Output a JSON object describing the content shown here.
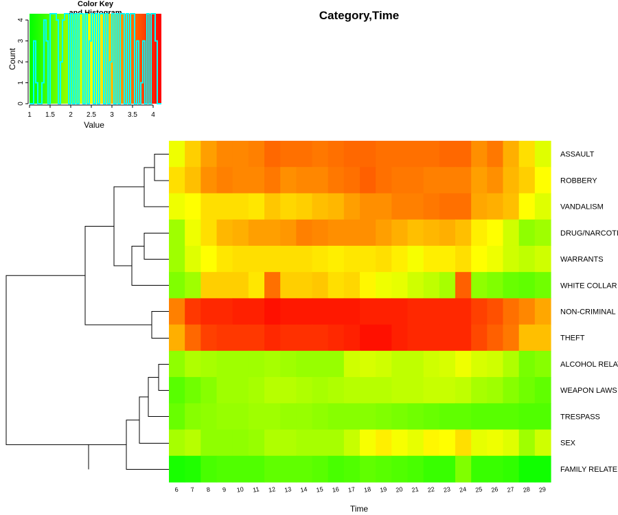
{
  "chart_data": {
    "type": "heatmap",
    "title": "Category,Time",
    "xlabel": "Time",
    "ylabel": "",
    "x_categories": [
      "6",
      "7",
      "8",
      "9",
      "10",
      "11",
      "12",
      "13",
      "14",
      "15",
      "16",
      "17",
      "18",
      "19",
      "20",
      "21",
      "22",
      "23",
      "24",
      "25",
      "26",
      "27",
      "28",
      "29"
    ],
    "row_labels": [
      "ASSAULT",
      "ROBBERY",
      "VANDALISM",
      "DRUG/NARCOTIC",
      "WARRANTS",
      "WHITE COLLAR",
      "NON-CRIMINAL",
      "THEFT",
      "ALCOHOL RELAT",
      "WEAPON LAWS",
      "TRESPASS",
      "SEX",
      "FAMILY RELATED"
    ],
    "value_range": [
      1,
      4.2
    ],
    "color_scale": [
      "#00ff00",
      "#ffff00",
      "#ff0000"
    ],
    "values": [
      [
        2.5,
        2.9,
        3.2,
        3.35,
        3.35,
        3.4,
        3.55,
        3.5,
        3.5,
        3.45,
        3.5,
        3.55,
        3.55,
        3.5,
        3.5,
        3.5,
        3.5,
        3.55,
        3.55,
        3.3,
        3.45,
        3.1,
        2.8,
        2.4
      ],
      [
        2.8,
        3.0,
        3.3,
        3.4,
        3.35,
        3.35,
        3.45,
        3.3,
        3.35,
        3.35,
        3.45,
        3.5,
        3.6,
        3.5,
        3.45,
        3.45,
        3.4,
        3.4,
        3.4,
        3.2,
        3.3,
        3.05,
        2.9,
        2.6
      ],
      [
        2.5,
        2.6,
        2.8,
        2.8,
        2.8,
        2.75,
        2.95,
        2.85,
        2.9,
        3.0,
        3.05,
        3.2,
        3.3,
        3.3,
        3.4,
        3.4,
        3.45,
        3.5,
        3.5,
        3.15,
        3.1,
        3.0,
        2.6,
        2.4
      ],
      [
        2.0,
        2.5,
        2.8,
        3.05,
        3.1,
        3.2,
        3.2,
        3.25,
        3.4,
        3.35,
        3.3,
        3.3,
        3.3,
        3.2,
        3.1,
        3.0,
        3.05,
        3.1,
        3.0,
        2.7,
        2.6,
        2.3,
        1.9,
        2.0
      ],
      [
        2.0,
        2.4,
        2.6,
        2.75,
        2.8,
        2.8,
        2.8,
        2.8,
        2.8,
        2.75,
        2.7,
        2.75,
        2.75,
        2.8,
        2.7,
        2.55,
        2.7,
        2.7,
        2.8,
        2.6,
        2.5,
        2.3,
        2.2,
        2.3
      ],
      [
        1.8,
        2.0,
        2.9,
        2.9,
        2.9,
        2.75,
        3.5,
        2.9,
        2.9,
        2.95,
        2.8,
        2.85,
        2.65,
        2.5,
        2.45,
        2.3,
        2.2,
        2.05,
        3.6,
        1.9,
        1.8,
        1.65,
        1.6,
        1.7
      ],
      [
        3.4,
        3.85,
        3.95,
        3.95,
        4.0,
        4.0,
        4.1,
        4.05,
        4.05,
        4.05,
        4.05,
        4.05,
        4.0,
        4.0,
        4.0,
        3.95,
        3.95,
        3.95,
        3.95,
        3.8,
        3.7,
        3.5,
        3.35,
        3.15
      ],
      [
        3.1,
        3.55,
        3.8,
        3.85,
        3.85,
        3.85,
        3.95,
        3.9,
        3.9,
        3.9,
        3.95,
        4.0,
        4.1,
        4.1,
        4.0,
        3.95,
        3.95,
        3.95,
        3.95,
        3.75,
        3.6,
        3.45,
        3.0,
        3.0
      ],
      [
        1.9,
        2.1,
        2.05,
        2.0,
        2.0,
        2.0,
        2.05,
        2.0,
        1.95,
        1.95,
        1.95,
        2.3,
        2.35,
        2.3,
        2.2,
        2.2,
        2.3,
        2.35,
        2.5,
        2.35,
        2.3,
        2.1,
        1.75,
        1.85
      ],
      [
        1.55,
        1.7,
        1.85,
        2.0,
        2.0,
        2.05,
        2.15,
        2.15,
        2.1,
        2.05,
        2.1,
        2.15,
        2.15,
        2.15,
        2.2,
        2.2,
        2.25,
        2.25,
        2.2,
        2.05,
        2.0,
        1.85,
        1.7,
        1.6
      ],
      [
        1.65,
        1.85,
        1.9,
        1.95,
        1.95,
        2.0,
        2.0,
        1.95,
        1.95,
        1.9,
        1.85,
        1.85,
        1.85,
        1.8,
        1.75,
        1.7,
        1.65,
        1.6,
        1.6,
        1.55,
        1.55,
        1.55,
        1.5,
        1.5
      ],
      [
        2.05,
        2.15,
        1.9,
        1.9,
        1.9,
        1.95,
        2.1,
        2.1,
        2.05,
        2.05,
        2.05,
        2.25,
        2.55,
        2.7,
        2.55,
        2.45,
        2.65,
        2.6,
        2.8,
        2.45,
        2.5,
        2.4,
        2.0,
        2.3
      ],
      [
        1.15,
        1.2,
        1.45,
        1.5,
        1.5,
        1.5,
        1.6,
        1.6,
        1.6,
        1.55,
        1.45,
        1.5,
        1.6,
        1.55,
        1.5,
        1.45,
        1.35,
        1.35,
        1.8,
        1.35,
        1.35,
        1.3,
        1.1,
        1.1
      ]
    ],
    "color_key": {
      "title_line1": "Color Key",
      "title_line2": "and Histogram",
      "xlabel": "Value",
      "ylabel": "Count",
      "x_ticks": [
        "1",
        "1.5",
        "2",
        "2.5",
        "3",
        "3.5",
        "4"
      ],
      "y_ticks": [
        "0",
        "1",
        "2",
        "3",
        "4"
      ],
      "histogram_color": "#00ffff"
    }
  }
}
